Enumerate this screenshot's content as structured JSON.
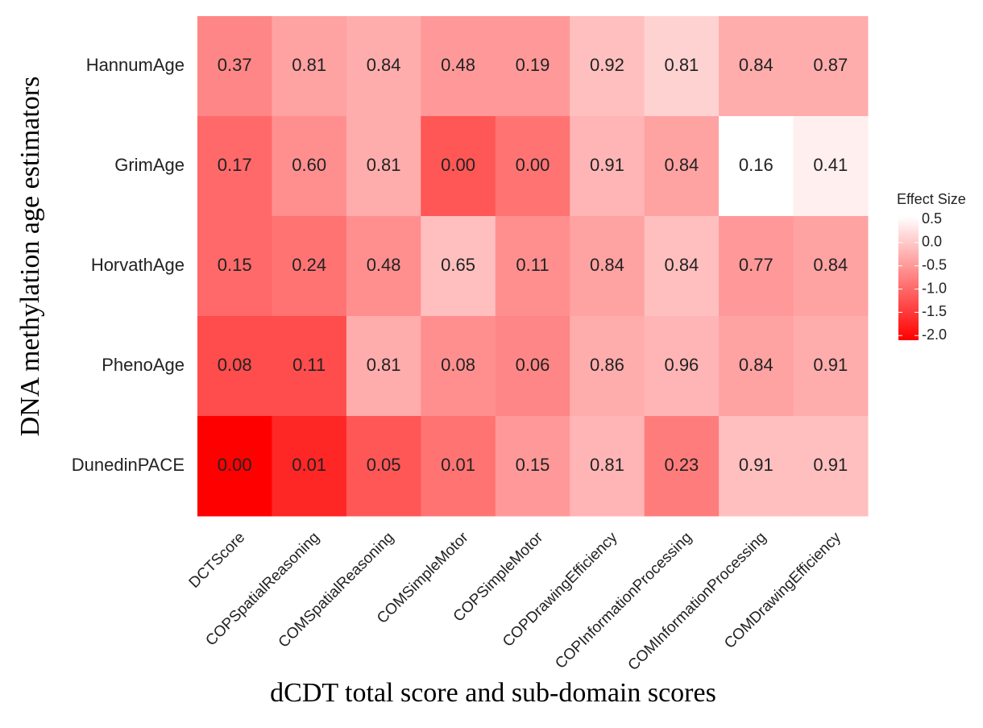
{
  "chart_data": {
    "type": "heatmap",
    "x_label": "dCDT total score and sub-domain scores",
    "y_label": "DNA methylation age estimators",
    "x": [
      "DCTScore",
      "COPSpatialReasoning",
      "COMSpatialReasoning",
      "COMSimpleMotor",
      "COPSimpleMotor",
      "COPDrawingEfficiency",
      "COPInformationProcessing",
      "COMInformationProcessing",
      "COMDrawingEfficiency"
    ],
    "y": [
      "HannumAge",
      "GrimAge",
      "HorvathAge",
      "PhenoAge",
      "DunedinPACE"
    ],
    "values": [
      [
        0.37,
        0.81,
        0.84,
        0.48,
        0.19,
        0.92,
        0.81,
        0.84,
        0.87
      ],
      [
        0.17,
        0.6,
        0.81,
        0,
        0,
        0.91,
        0.84,
        0.16,
        0.41
      ],
      [
        0.15,
        0.24,
        0.48,
        0.65,
        0.11,
        0.84,
        0.84,
        0.77,
        0.84
      ],
      [
        0.08,
        0.11,
        0.81,
        0.08,
        0.06,
        0.86,
        0.96,
        0.84,
        0.91
      ],
      [
        0,
        0.01,
        0.05,
        0.01,
        0.15,
        0.81,
        0.23,
        0.91,
        0.91
      ]
    ],
    "value_labels": [
      [
        "0.37",
        "0.81",
        "0.84",
        "0.48",
        "0.19",
        "0.92",
        "0.81",
        "0.84",
        "0.87"
      ],
      [
        "0.17",
        "0.60",
        "0.81",
        "0.00",
        "0.00",
        "0.91",
        "0.84",
        "0.16",
        "0.41"
      ],
      [
        "0.15",
        "0.24",
        "0.48",
        "0.65",
        "0.11",
        "0.84",
        "0.84",
        "0.77",
        "0.84"
      ],
      [
        "0.08",
        "0.11",
        "0.81",
        "0.08",
        "0.06",
        "0.86",
        "0.96",
        "0.84",
        "0.91"
      ],
      [
        "0.00",
        "0.01",
        "0.05",
        "0.01",
        "0.15",
        "0.81",
        "0.23",
        "0.91",
        "0.91"
      ]
    ],
    "color_values": [
      [
        -0.7,
        -0.4,
        -0.3,
        -0.5,
        -0.5,
        -0.1,
        0.1,
        -0.3,
        -0.3
      ],
      [
        -1.0,
        -0.6,
        -0.3,
        -1.2,
        -0.9,
        -0.2,
        -0.4,
        0.57,
        0.4
      ],
      [
        -1.0,
        -0.9,
        -0.6,
        -0.1,
        -0.6,
        -0.4,
        -0.1,
        -0.5,
        -0.4
      ],
      [
        -1.3,
        -1.3,
        -0.3,
        -0.6,
        -0.7,
        -0.3,
        -0.2,
        -0.4,
        -0.3
      ],
      [
        -2.1,
        -1.7,
        -1.2,
        -0.9,
        -0.5,
        -0.2,
        -0.8,
        -0.1,
        -0.1
      ]
    ],
    "legend_title": "Effect Size",
    "clim": [
      -2.1,
      0.57
    ],
    "cticks": [
      0.5,
      {
        "value": 0,
        "label": "0.0"
      },
      -0.5,
      {
        "value": -1,
        "label": "-1.0"
      },
      -1.5,
      {
        "value": -2,
        "label": "-2.0"
      }
    ],
    "color_low": "#ff0000",
    "color_high": "#ffffff"
  }
}
